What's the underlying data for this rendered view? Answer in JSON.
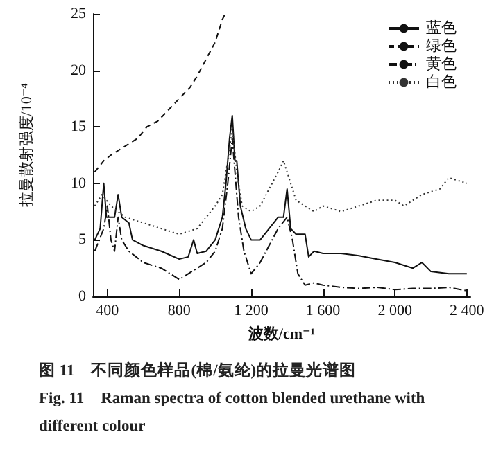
{
  "chart_data": {
    "type": "line",
    "xlabel": "波数/cm⁻¹",
    "ylabel": "拉曼散射强度/10⁻⁴",
    "annotations": [
      "图 11　不同颜色样品(棉/氨纶)的拉曼光谱图",
      "Fig. 11　Raman spectra of cotton blended urethane with different colour"
    ],
    "xlim": [
      320,
      2420
    ],
    "ylim": [
      0,
      25
    ],
    "xticks": [
      400,
      800,
      {
        "value": 1200,
        "label": "1 200"
      },
      {
        "value": 1600,
        "label": "1 600"
      },
      {
        "value": 2000,
        "label": "2 000"
      },
      {
        "value": 2400,
        "label": "2 400"
      }
    ],
    "yticks": [
      0,
      5,
      10,
      15,
      20,
      25
    ],
    "legend": "top right",
    "grid": false,
    "marker": "none",
    "series": [
      {
        "name": "蓝色",
        "color": "#111111",
        "line_style": "solid",
        "x": [
          330,
          360,
          380,
          395,
          410,
          440,
          460,
          480,
          520,
          540,
          600,
          700,
          800,
          850,
          880,
          900,
          950,
          1000,
          1040,
          1060,
          1080,
          1095,
          1110,
          1120,
          1140,
          1170,
          1200,
          1250,
          1300,
          1350,
          1380,
          1400,
          1420,
          1450,
          1500,
          1520,
          1550,
          1600,
          1700,
          1800,
          1900,
          2000,
          2100,
          2150,
          2200,
          2300,
          2400
        ],
        "values": [
          5,
          6,
          10,
          7,
          7,
          7,
          9,
          7,
          6.5,
          5,
          4.5,
          4,
          3.3,
          3.5,
          5,
          3.8,
          4,
          5,
          7,
          10,
          14,
          16,
          12,
          12,
          8,
          6,
          5,
          5,
          6,
          7,
          7,
          9.5,
          6,
          5.5,
          5.5,
          3.5,
          4,
          3.8,
          3.8,
          3.6,
          3.3,
          3,
          2.5,
          3,
          2.2,
          2,
          2
        ]
      },
      {
        "name": "绿色",
        "color": "#111111",
        "line_style": "dashed",
        "x": [
          330,
          380,
          420,
          470,
          520,
          570,
          620,
          680,
          740,
          800,
          860,
          900,
          950,
          1000,
          1040,
          1055
        ],
        "values": [
          11,
          12,
          12.5,
          13,
          13.5,
          14,
          15,
          15.5,
          16.5,
          17.5,
          18.5,
          19.5,
          21,
          22.5,
          24.5,
          25
        ]
      },
      {
        "name": "黄色",
        "color": "#111111",
        "line_style": "dashdot",
        "x": [
          330,
          380,
          400,
          420,
          440,
          460,
          480,
          520,
          560,
          600,
          700,
          800,
          850,
          900,
          950,
          1000,
          1040,
          1070,
          1095,
          1110,
          1130,
          1160,
          1200,
          1250,
          1300,
          1350,
          1400,
          1430,
          1460,
          1500,
          1550,
          1600,
          1700,
          1800,
          1900,
          2000,
          2100,
          2200,
          2300,
          2400
        ],
        "values": [
          4,
          6,
          8,
          5,
          4,
          7,
          5,
          4,
          3.5,
          3,
          2.5,
          1.5,
          2,
          2.5,
          3,
          4,
          6,
          10,
          14,
          11,
          7,
          4,
          2,
          3,
          4.5,
          6,
          7,
          5,
          2,
          1,
          1.2,
          1,
          0.8,
          0.7,
          0.8,
          0.6,
          0.7,
          0.7,
          0.8,
          0.5
        ]
      },
      {
        "name": "白色",
        "color": "#333333",
        "line_style": "dotted",
        "x": [
          330,
          370,
          420,
          500,
          600,
          700,
          800,
          900,
          950,
          1000,
          1040,
          1080,
          1095,
          1120,
          1150,
          1200,
          1250,
          1300,
          1350,
          1380,
          1420,
          1450,
          1500,
          1550,
          1600,
          1700,
          1800,
          1900,
          2000,
          2050,
          2150,
          2250,
          2300,
          2400
        ],
        "values": [
          8,
          9,
          8,
          7,
          6.5,
          6,
          5.5,
          6,
          7,
          8,
          9,
          13,
          15,
          11,
          8,
          7.5,
          8,
          9.5,
          11,
          12,
          10,
          8.5,
          8,
          7.5,
          8,
          7.5,
          8,
          8.5,
          8.5,
          8,
          9,
          9.5,
          10.5,
          10
        ]
      }
    ]
  }
}
